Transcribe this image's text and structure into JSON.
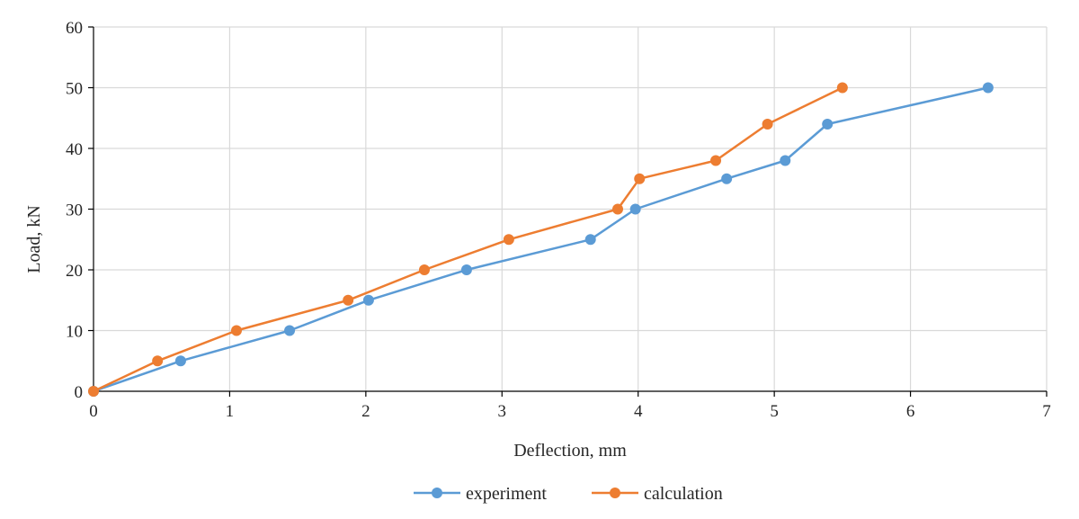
{
  "chart_data": {
    "type": "line",
    "title": "",
    "xlabel": "Deflection, mm",
    "ylabel": "Load, kN",
    "xlim": [
      0,
      7
    ],
    "ylim": [
      0,
      60
    ],
    "xticks": [
      0,
      1,
      2,
      3,
      4,
      5,
      6,
      7
    ],
    "yticks": [
      0,
      10,
      20,
      30,
      40,
      50,
      60
    ],
    "xtick_labels": [
      "0",
      "1",
      "2",
      "3",
      "4",
      "5",
      "6",
      "7"
    ],
    "ytick_labels": [
      "0",
      "10",
      "20",
      "30",
      "40",
      "50",
      "60"
    ],
    "grid": true,
    "legend_position": "bottom",
    "series": [
      {
        "name": "experiment",
        "color": "#5b9bd5",
        "x": [
          0,
          0.64,
          1.44,
          2.02,
          2.74,
          3.65,
          3.98,
          4.65,
          5.08,
          5.39,
          6.57
        ],
        "y": [
          0,
          5,
          10,
          15,
          20,
          25,
          30,
          35,
          38,
          44,
          50
        ]
      },
      {
        "name": "calculation",
        "color": "#ed7d31",
        "x": [
          0,
          0.47,
          1.05,
          1.87,
          2.43,
          3.05,
          3.85,
          4.01,
          4.57,
          4.95,
          5.5
        ],
        "y": [
          0,
          5,
          10,
          15,
          20,
          25,
          30,
          35,
          38,
          44,
          50
        ]
      }
    ]
  }
}
